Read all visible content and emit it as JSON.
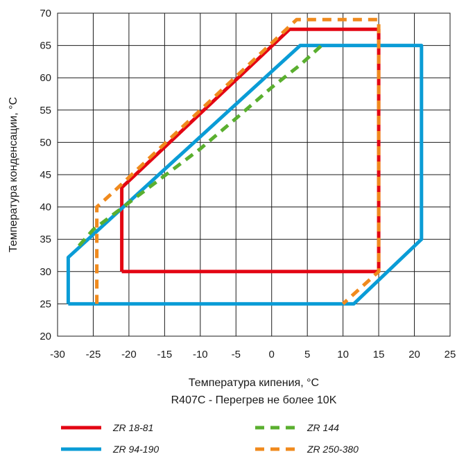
{
  "chart_data": {
    "type": "line",
    "xlabel": "Температура кипения, °C",
    "subtitle": "R407C - Перегрев не более 10K",
    "ylabel": "Температура конденсации, °C",
    "xlim": [
      -30,
      25
    ],
    "ylim": [
      20,
      70
    ],
    "xticks": [
      -30,
      -25,
      -20,
      -15,
      -10,
      -5,
      0,
      5,
      10,
      15,
      20,
      25
    ],
    "yticks": [
      20,
      25,
      30,
      35,
      40,
      45,
      50,
      55,
      60,
      65,
      70
    ],
    "grid": true,
    "legend_position": "bottom",
    "series": [
      {
        "name": "ZR 18-81",
        "color": "#e30613",
        "dash": "solid",
        "points": [
          [
            -21,
            30
          ],
          [
            15,
            30
          ],
          [
            15,
            67.5
          ],
          [
            2.5,
            67.5
          ],
          [
            -21,
            43
          ],
          [
            -21,
            30
          ]
        ]
      },
      {
        "name": "ZR 94-190",
        "color": "#0a9cd6",
        "dash": "solid",
        "points": [
          [
            -28.5,
            25
          ],
          [
            11.5,
            25
          ],
          [
            21,
            35
          ],
          [
            21,
            65
          ],
          [
            4,
            65
          ],
          [
            -28.5,
            32.2
          ],
          [
            -28.5,
            25
          ]
        ]
      },
      {
        "name": "ZR 144",
        "color": "#5aaf2f",
        "dash": "dashed",
        "points": [
          [
            -27,
            34
          ],
          [
            -25,
            36.5
          ],
          [
            -10,
            49
          ],
          [
            -5,
            53.7
          ],
          [
            0,
            58.5
          ],
          [
            4,
            62
          ],
          [
            7.5,
            65.5
          ]
        ]
      },
      {
        "name": "ZR 250-380",
        "color": "#f08a1d",
        "dash": "dashed",
        "points": [
          [
            -24.5,
            25
          ],
          [
            -24.5,
            40
          ],
          [
            -22.5,
            42
          ],
          [
            3.5,
            69
          ],
          [
            15,
            69
          ],
          [
            15,
            30
          ],
          [
            10,
            25
          ]
        ]
      }
    ]
  }
}
